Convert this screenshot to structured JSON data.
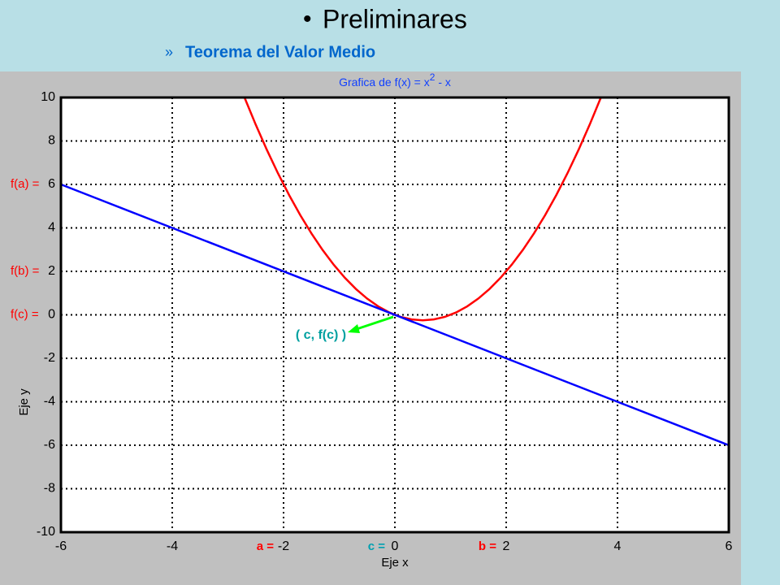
{
  "slide": {
    "bullet": "•",
    "title": "Preliminares",
    "sub_bullet": "»",
    "subtitle": "Teorema del Valor Medio"
  },
  "chart_data": {
    "type": "line",
    "title_parts": [
      "Grafica de  f(x) = x",
      "2",
      " - x"
    ],
    "x_label": "Eje x",
    "y_label": "Eje y",
    "xlim": [
      -6,
      6
    ],
    "ylim": [
      -10,
      10
    ],
    "xticks": [
      -6,
      -4,
      -2,
      0,
      2,
      4,
      6
    ],
    "yticks": [
      -10,
      -8,
      -6,
      -4,
      -2,
      0,
      2,
      4,
      6,
      8,
      10
    ],
    "grid": true,
    "series": [
      {
        "color": "#ff0000",
        "x": [
          -2.7,
          -2.5,
          -2.3,
          -2.1,
          -1.9,
          -1.7,
          -1.5,
          -1.3,
          -1.1,
          -0.9,
          -0.7,
          -0.5,
          -0.3,
          -0.1,
          0.1,
          0.3,
          0.5,
          0.7,
          0.9,
          1.1,
          1.3,
          1.5,
          1.7,
          1.9,
          2.1,
          2.3,
          2.5,
          2.7,
          2.9,
          3.1,
          3.3,
          3.5,
          3.7
        ],
        "values": [
          9.99,
          8.75,
          7.59,
          6.51,
          5.51,
          4.59,
          3.75,
          2.99,
          2.31,
          1.71,
          1.19,
          0.75,
          0.39,
          0.11,
          -0.09,
          -0.21,
          -0.25,
          -0.21,
          -0.09,
          0.11,
          0.39,
          0.75,
          1.19,
          1.71,
          2.31,
          2.99,
          3.75,
          4.59,
          5.51,
          6.51,
          7.59,
          8.75,
          9.99
        ]
      },
      {
        "color": "#0000ff",
        "x": [
          -6,
          6
        ],
        "values": [
          6,
          -6
        ]
      }
    ],
    "y_annotations": [
      {
        "text": "f(a) =",
        "y": 6,
        "color": "#ff0000"
      },
      {
        "text": "f(b) =",
        "y": 2,
        "color": "#ff0000"
      },
      {
        "text": "f(c) =",
        "y": 0,
        "color": "#ff0000"
      }
    ],
    "x_annotations": [
      {
        "text": "a =",
        "x": -2,
        "color": "#ff0000"
      },
      {
        "text": "c =",
        "x": 0,
        "color": "#00a0b0"
      },
      {
        "text": "b =",
        "x": 2,
        "color": "#ff0000"
      }
    ],
    "point_label": {
      "text": "( c, f(c) )",
      "color": "#00a0a0"
    }
  }
}
